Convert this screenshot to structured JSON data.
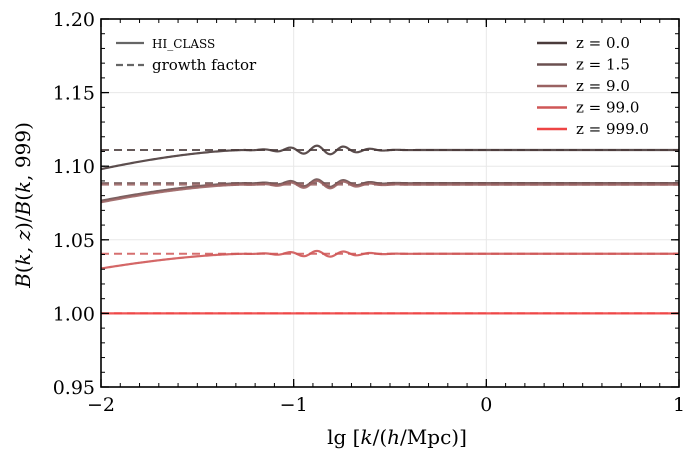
{
  "chart_data": {
    "type": "line",
    "xlabel": "lg [k/(h/Mpc)]",
    "ylabel": "B(k,z)/B(k,999)",
    "xlim": [
      -2,
      1
    ],
    "ylim": [
      0.95,
      1.2
    ],
    "x_ticks": [
      -2,
      -1,
      0,
      1
    ],
    "x_tick_labels": [
      "−2",
      "−1",
      "0",
      "1"
    ],
    "y_ticks": [
      0.95,
      1.0,
      1.05,
      1.1,
      1.15,
      1.2
    ],
    "y_tick_labels": [
      "0.95",
      "1.00",
      "1.05",
      "1.10",
      "1.15",
      "1.20"
    ],
    "grid": true,
    "legend_style": {
      "position": "top-left",
      "entries": [
        {
          "label": "HI_CLASS",
          "style": "solid",
          "color": "#666666"
        },
        {
          "label": "growth factor",
          "style": "dashed",
          "color": "#666666"
        }
      ]
    },
    "legend_redshift": {
      "position": "top-right",
      "entries": [
        {
          "label": "z = 0.0",
          "color": "#4a3b3b"
        },
        {
          "label": "z = 1.5",
          "color": "#6b5050"
        },
        {
          "label": "z = 9.0",
          "color": "#9a6262"
        },
        {
          "label": "z = 99.0",
          "color": "#cf5757"
        },
        {
          "label": "z = 999.0",
          "color": "#ee4444"
        }
      ]
    },
    "series": [
      {
        "name": "z = 0.0",
        "color": "#4a3b3b",
        "growth_factor": 1.111,
        "ratio_large_scale": 1.098,
        "wiggle_amplitude": 0.003
      },
      {
        "name": "z = 1.5",
        "color": "#6b5050",
        "growth_factor": 1.0885,
        "ratio_large_scale": 1.0765,
        "wiggle_amplitude": 0.0026
      },
      {
        "name": "z = 9.0",
        "color": "#9a6262",
        "growth_factor": 1.0875,
        "ratio_large_scale": 1.0755,
        "wiggle_amplitude": 0.0026
      },
      {
        "name": "z = 99.0",
        "color": "#cf5757",
        "growth_factor": 1.0405,
        "ratio_large_scale": 1.0305,
        "wiggle_amplitude": 0.002
      },
      {
        "name": "z = 999.0",
        "color": "#ee4444",
        "growth_factor": 1.0,
        "ratio_large_scale": 1.0,
        "wiggle_amplitude": 0.0
      }
    ]
  }
}
